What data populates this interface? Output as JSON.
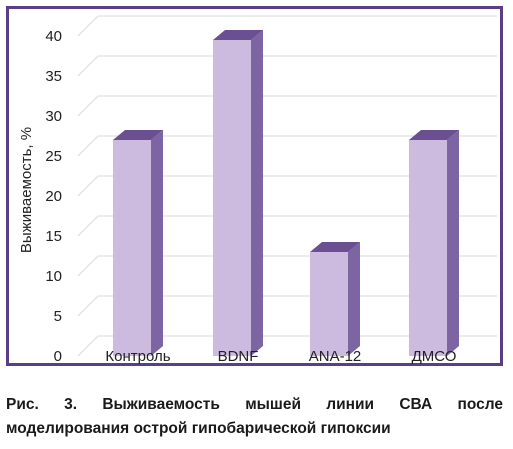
{
  "chart_data": {
    "type": "bar",
    "categories": [
      "Контроль",
      "BDNF",
      "ANA-12",
      "ДМСО"
    ],
    "values": [
      27,
      39.5,
      13,
      27
    ],
    "ylabel": "Выживаемость, %",
    "xlabel": "",
    "ylim": [
      0,
      40
    ],
    "yticks": [
      "0",
      "5",
      "10",
      "15",
      "20",
      "25",
      "30",
      "35",
      "40"
    ],
    "grid": true,
    "legend": "none",
    "colors": {
      "bar_front": "#cdbadf",
      "bar_side": "#7d64a3",
      "bar_top": "#6a4f92",
      "frame": "#5b3f86"
    }
  },
  "caption": {
    "line1": "Рис. 3. Выживаемость мышей линии СВА после",
    "line2": "моделирования острой гипобарической гипоксии"
  }
}
